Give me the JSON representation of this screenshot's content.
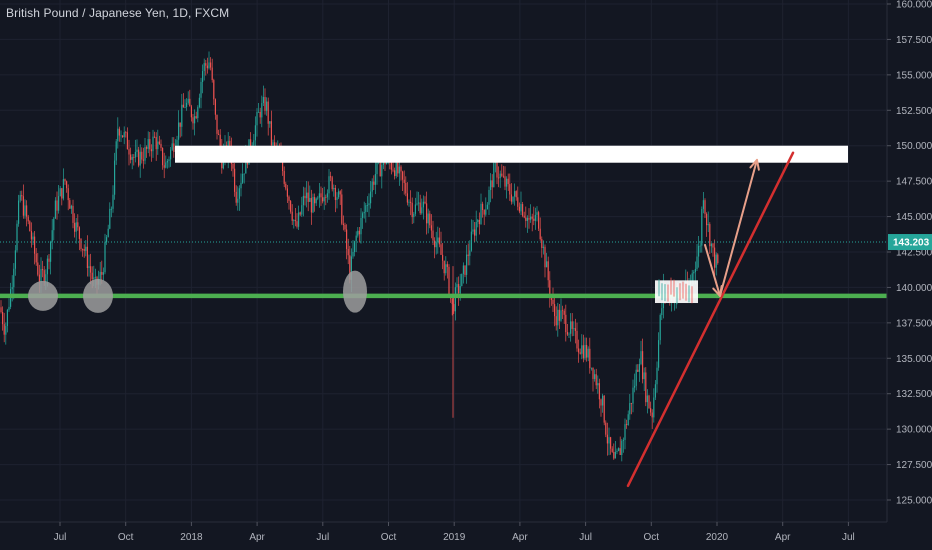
{
  "window": {
    "title": "British Pound / Japanese Yen, 1D, FXCM"
  },
  "colors": {
    "background": "#131722",
    "grid": "#1e2230",
    "bull": "#26a69a",
    "bear": "#ef5350",
    "support": "#4caf50",
    "trendline": "#d32f2f",
    "projection": "#e8a08a",
    "resistance": "#ffffff",
    "ellipse": "#9e9e9e",
    "price_label": "#26a69a"
  },
  "chart_data": {
    "type": "candlestick",
    "title": "British Pound / Japanese Yen, 1D, FXCM",
    "y_axis": {
      "range": [
        123.8,
        160.0
      ],
      "ticks": [
        "160.000",
        "157.500",
        "155.000",
        "152.500",
        "150.000",
        "147.500",
        "145.000",
        "142.500",
        "140.000",
        "137.500",
        "135.000",
        "132.500",
        "130.000",
        "127.500",
        "125.000"
      ]
    },
    "x_axis": {
      "ticks": [
        "Jul",
        "Oct",
        "2018",
        "Apr",
        "Jul",
        "Oct",
        "2019",
        "Apr",
        "Jul",
        "Oct",
        "2020",
        "Apr",
        "Jul"
      ]
    },
    "current_price": {
      "value": 143.203,
      "label": "143.203"
    },
    "price_path": [
      [
        0,
        138.6
      ],
      [
        5,
        137.0
      ],
      [
        12,
        140.5
      ],
      [
        20,
        146.5
      ],
      [
        30,
        144.0
      ],
      [
        40,
        140.5
      ],
      [
        47,
        141.5
      ],
      [
        55,
        145.5
      ],
      [
        65,
        147.5
      ],
      [
        75,
        144.5
      ],
      [
        85,
        142.5
      ],
      [
        95,
        140.0
      ],
      [
        102,
        141.0
      ],
      [
        112,
        146.0
      ],
      [
        118,
        151.5
      ],
      [
        125,
        150.5
      ],
      [
        135,
        149.0
      ],
      [
        145,
        149.5
      ],
      [
        155,
        150.5
      ],
      [
        165,
        148.5
      ],
      [
        175,
        150.5
      ],
      [
        185,
        153.0
      ],
      [
        195,
        152.0
      ],
      [
        203,
        155.5
      ],
      [
        210,
        156.0
      ],
      [
        215,
        152.0
      ],
      [
        222,
        149.0
      ],
      [
        230,
        150.0
      ],
      [
        236,
        146.5
      ],
      [
        244,
        148.5
      ],
      [
        252,
        150.5
      ],
      [
        260,
        152.5
      ],
      [
        266,
        153.0
      ],
      [
        272,
        150.0
      ],
      [
        280,
        149.0
      ],
      [
        287,
        147.0
      ],
      [
        296,
        144.0
      ],
      [
        305,
        146.5
      ],
      [
        315,
        145.5
      ],
      [
        325,
        147.0
      ],
      [
        332,
        147.5
      ],
      [
        340,
        146.0
      ],
      [
        350,
        141.0
      ],
      [
        356,
        143.5
      ],
      [
        365,
        145.5
      ],
      [
        375,
        148.0
      ],
      [
        385,
        149.0
      ],
      [
        395,
        148.5
      ],
      [
        405,
        147.0
      ],
      [
        413,
        145.5
      ],
      [
        422,
        146.0
      ],
      [
        432,
        144.0
      ],
      [
        440,
        142.5
      ],
      [
        447,
        141.0
      ],
      [
        452,
        138.5
      ],
      [
        456,
        139.5
      ],
      [
        462,
        140.5
      ],
      [
        470,
        143.0
      ],
      [
        478,
        145.0
      ],
      [
        487,
        146.0
      ],
      [
        495,
        148.5
      ],
      [
        503,
        147.5
      ],
      [
        512,
        146.5
      ],
      [
        520,
        146.0
      ],
      [
        530,
        144.5
      ],
      [
        538,
        145.0
      ],
      [
        546,
        141.5
      ],
      [
        554,
        138.0
      ],
      [
        562,
        138.0
      ],
      [
        570,
        137.0
      ],
      [
        578,
        136.0
      ],
      [
        586,
        135.5
      ],
      [
        594,
        134.0
      ],
      [
        602,
        132.0
      ],
      [
        608,
        129.0
      ],
      [
        614,
        127.5
      ],
      [
        620,
        128.5
      ],
      [
        628,
        131.0
      ],
      [
        634,
        133.0
      ],
      [
        640,
        135.5
      ],
      [
        646,
        132.5
      ],
      [
        652,
        131.0
      ],
      [
        656,
        134.0
      ],
      [
        660,
        137.5
      ],
      [
        664,
        140.0
      ],
      [
        670,
        139.5
      ],
      [
        678,
        139.5
      ],
      [
        688,
        139.8
      ],
      [
        696,
        142.0
      ],
      [
        700,
        143.0
      ],
      [
        703,
        147.0
      ],
      [
        706,
        145.0
      ],
      [
        710,
        143.5
      ],
      [
        714,
        142.0
      ],
      [
        718,
        141.5
      ]
    ],
    "support_level": 139.4,
    "resistance_zone": [
      148.8,
      150.0
    ],
    "trendline": [
      [
        628,
        126.0
      ],
      [
        793,
        149.5
      ]
    ],
    "consolidation_box": [
      [
        655,
        140.5
      ],
      [
        698,
        138.9
      ]
    ],
    "projection_path": [
      [
        705,
        143.0
      ],
      [
        720,
        139.4
      ],
      [
        757,
        149.0
      ]
    ],
    "markers": [
      {
        "cx": 43,
        "price": 139.4
      },
      {
        "cx": 98,
        "price": 139.4
      },
      {
        "cx": 355,
        "price": 139.7
      }
    ]
  }
}
